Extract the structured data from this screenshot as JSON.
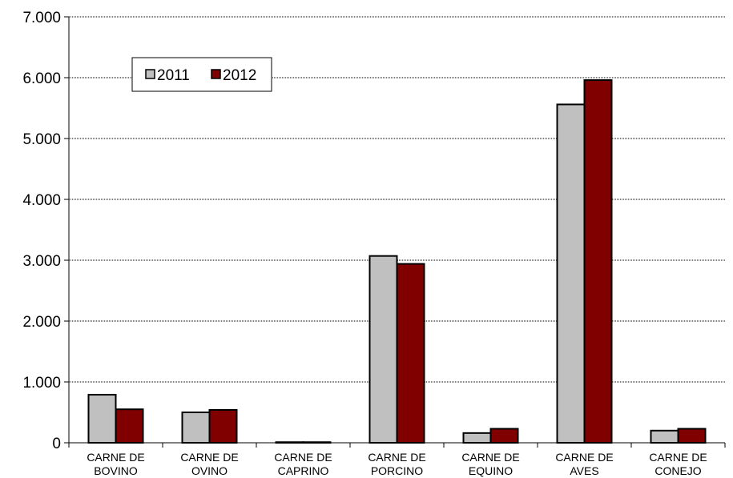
{
  "chart_data": {
    "type": "bar",
    "title": "",
    "xlabel": "",
    "ylabel": "",
    "categories": [
      [
        "CARNE DE",
        "BOVINO"
      ],
      [
        "CARNE DE",
        "OVINO"
      ],
      [
        "CARNE DE",
        "CAPRINO"
      ],
      [
        "CARNE DE",
        "PORCINO"
      ],
      [
        "CARNE DE",
        "EQUINO"
      ],
      [
        "CARNE DE",
        "AVES"
      ],
      [
        "CARNE DE",
        "CONEJO"
      ]
    ],
    "series": [
      {
        "name": "2011",
        "color": "#c0c0c0",
        "values": [
          790,
          500,
          10,
          3070,
          160,
          5560,
          200
        ]
      },
      {
        "name": "2012",
        "color": "#800000",
        "values": [
          550,
          540,
          10,
          2940,
          230,
          5960,
          230
        ]
      }
    ],
    "ylim": [
      0,
      7000
    ],
    "yticks": [
      0,
      1000,
      2000,
      3000,
      4000,
      5000,
      6000,
      7000
    ],
    "ytick_labels": [
      "0",
      "1.000",
      "2.000",
      "3.000",
      "4.000",
      "5.000",
      "6.000",
      "7.000"
    ],
    "grid": true,
    "legend_position": "top-left"
  }
}
